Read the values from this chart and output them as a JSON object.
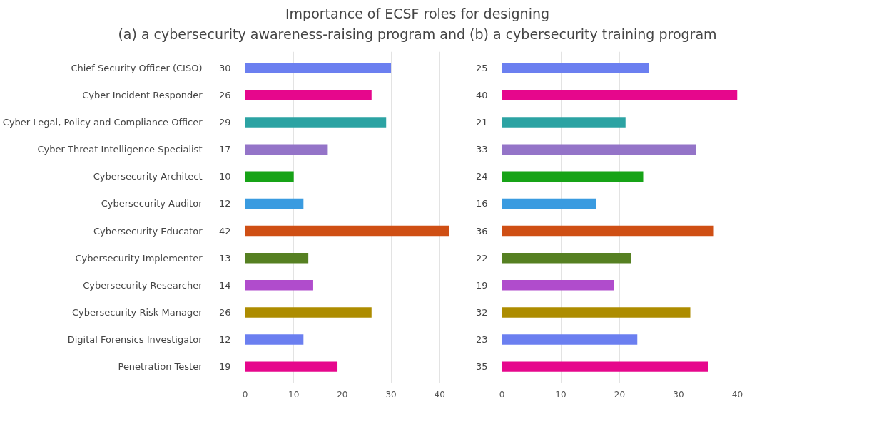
{
  "chart_data": [
    {
      "type": "bar",
      "orientation": "horizontal",
      "title": "Importance of ECSF roles for designing\n(a) a cybersecurity awareness-raising program and (b) a cybersecurity training program",
      "categories": [
        "Chief Security Officer (CISO)",
        "Cyber Incident Responder",
        "Cyber Legal, Policy and Compliance Officer",
        "Cyber Threat Intelligence Specialist",
        "Cybersecurity Architect",
        "Cybersecurity Auditor",
        "Cybersecurity Educator",
        "Cybersecurity Implementer",
        "Cybersecurity Researcher",
        "Cybersecurity Risk Manager",
        "Digital Forensics Investigator",
        "Penetration Tester"
      ],
      "values": [
        30,
        26,
        29,
        17,
        10,
        12,
        42,
        13,
        14,
        26,
        12,
        19
      ],
      "colors": [
        "#6b7ff0",
        "#e6078c",
        "#2ca3a3",
        "#9474c8",
        "#17a317",
        "#3a9be0",
        "#cf4f14",
        "#568022",
        "#b04ccc",
        "#ad8c00",
        "#6b7ff0",
        "#e6078c"
      ],
      "xlim": [
        0,
        44
      ],
      "xticks": [
        0,
        10,
        20,
        30,
        40
      ],
      "grid": "x",
      "data_labels": true
    },
    {
      "type": "bar",
      "orientation": "horizontal",
      "categories": [
        null,
        null,
        null,
        null,
        null,
        null,
        null,
        null,
        null,
        null,
        null,
        null
      ],
      "values": [
        25,
        40,
        21,
        33,
        24,
        16,
        36,
        22,
        19,
        32,
        23,
        35
      ],
      "colors": [
        "#6b7ff0",
        "#e6078c",
        "#2ca3a3",
        "#9474c8",
        "#17a317",
        "#3a9be0",
        "#cf4f14",
        "#568022",
        "#b04ccc",
        "#ad8c00",
        "#6b7ff0",
        "#e6078c"
      ],
      "xlim": [
        0,
        40
      ],
      "xticks": [
        0,
        10,
        20,
        30,
        40
      ],
      "grid": "x",
      "data_labels": true,
      "tick_labels": "x"
    }
  ]
}
